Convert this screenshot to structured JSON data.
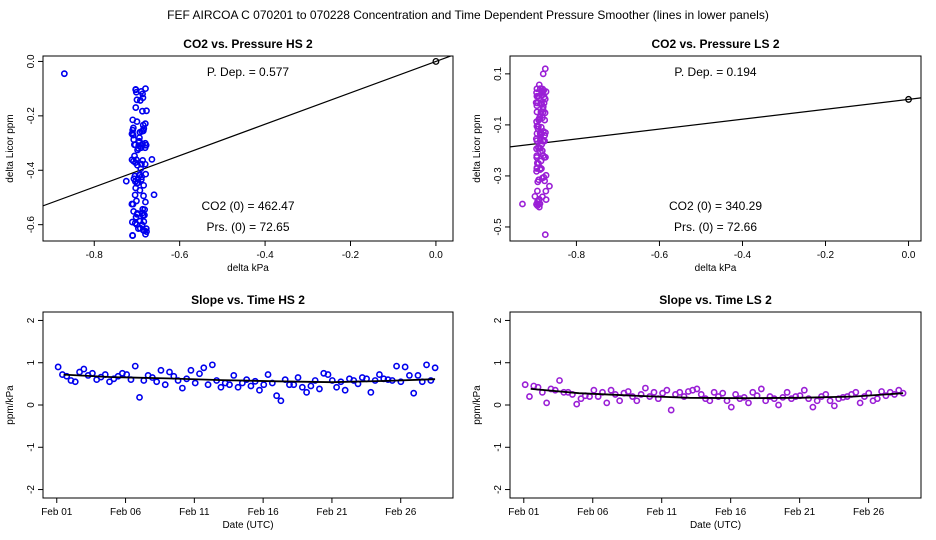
{
  "figure_title": "FEF   AIRCOA C   070201 to 070228   Concentration and Time Dependent Pressure Smoother (lines in lower panels)",
  "chart_data": [
    {
      "id": "hs-pressure",
      "type": "scatter",
      "title": "CO2 vs. Pressure HS 2",
      "xlabel": "delta kPa",
      "ylabel": "delta Licor ppm",
      "xlim": [
        -0.92,
        0.04
      ],
      "ylim": [
        -0.66,
        0.02
      ],
      "xticks": [
        -0.8,
        -0.6,
        -0.4,
        -0.2,
        0.0
      ],
      "xtick_labels": [
        "-0.8",
        "-0.6",
        "-0.4",
        "-0.2",
        "0.0"
      ],
      "yticks": [
        0.0,
        -0.2,
        -0.4,
        -0.6
      ],
      "ytick_labels": [
        "0.0",
        "-0.2",
        "-0.4",
        "-0.6"
      ],
      "color": "#0000ee",
      "annotations": {
        "p_dep": "P. Dep. =  0.577",
        "co2_0": "CO2 (0) =  462.47",
        "prs_0": "Prs. (0) =  72.65"
      },
      "fit_line": {
        "slope": 0.577,
        "intercept": 0.0
      },
      "reference_point": [
        0.0,
        0.0
      ],
      "cluster": {
        "x_center": -0.695,
        "x_spread": 0.018,
        "y_min": -0.64,
        "y_max": -0.1,
        "n": 90,
        "seed": 11
      },
      "points": [
        [
          -0.87,
          -0.045
        ],
        [
          -0.69,
          -0.11
        ],
        [
          -0.68,
          -0.1
        ],
        [
          -0.665,
          -0.36
        ],
        [
          -0.66,
          -0.49
        ],
        [
          -0.68,
          -0.635
        ],
        [
          -0.725,
          -0.44
        ],
        [
          -0.71,
          -0.64
        ]
      ]
    },
    {
      "id": "ls-pressure",
      "type": "scatter",
      "title": "CO2 vs. Pressure LS 2",
      "xlabel": "delta kPa",
      "ylabel": "delta Licor ppm",
      "xlim": [
        -0.96,
        0.03
      ],
      "ylim": [
        -0.555,
        0.17
      ],
      "xticks": [
        -0.8,
        -0.6,
        -0.4,
        -0.2,
        0.0
      ],
      "xtick_labels": [
        "-0.8",
        "-0.6",
        "-0.4",
        "-0.2",
        "0.0"
      ],
      "yticks": [
        0.1,
        -0.1,
        -0.3,
        -0.5
      ],
      "ytick_labels": [
        "0.1",
        "-0.1",
        "-0.3",
        "-0.5"
      ],
      "color": "#9a1fd6",
      "annotations": {
        "p_dep": "P. Dep. =  0.194",
        "co2_0": "CO2 (0) =  340.29",
        "prs_0": "Prs. (0) =  72.66"
      },
      "fit_line": {
        "slope": 0.194,
        "intercept": 0.0
      },
      "reference_point": [
        0.0,
        0.0
      ],
      "cluster": {
        "x_center": -0.885,
        "x_spread": 0.012,
        "y_min": -0.43,
        "y_max": 0.06,
        "n": 95,
        "seed": 23
      },
      "points": [
        [
          -0.875,
          0.12
        ],
        [
          -0.875,
          -0.53
        ],
        [
          -0.93,
          -0.41
        ],
        [
          -0.88,
          0.1
        ],
        [
          -0.865,
          -0.34
        ],
        [
          -0.9,
          -0.38
        ]
      ]
    },
    {
      "id": "hs-time",
      "type": "scatter",
      "title": "Slope vs. Time HS 2",
      "xlabel": "Date (UTC)",
      "ylabel": "ppm/kPa",
      "xlim": [
        -1.0,
        28.8
      ],
      "ylim": [
        -2.2,
        2.2
      ],
      "xticks": [
        0,
        5,
        10,
        15,
        20,
        25
      ],
      "xtick_labels": [
        "Feb 01",
        "Feb 06",
        "Feb 11",
        "Feb 16",
        "Feb 21",
        "Feb 26"
      ],
      "yticks": [
        2,
        1,
        0,
        -1,
        -2
      ],
      "ytick_labels": [
        "2",
        "1",
        "0",
        "-1",
        "-2"
      ],
      "color": "#0000ee",
      "smoother": [
        [
          0.5,
          0.72
        ],
        [
          4,
          0.66
        ],
        [
          8,
          0.63
        ],
        [
          12,
          0.59
        ],
        [
          16,
          0.56
        ],
        [
          20,
          0.54
        ],
        [
          24,
          0.57
        ],
        [
          27.5,
          0.61
        ]
      ],
      "values": [
        0.9,
        0.72,
        0.68,
        0.58,
        0.55,
        0.78,
        0.85,
        0.7,
        0.75,
        0.6,
        0.66,
        0.72,
        0.55,
        0.62,
        0.68,
        0.75,
        0.72,
        0.6,
        0.92,
        0.18,
        0.58,
        0.7,
        0.65,
        0.55,
        0.82,
        0.48,
        0.78,
        0.68,
        0.58,
        0.4,
        0.62,
        0.82,
        0.52,
        0.74,
        0.88,
        0.48,
        0.95,
        0.58,
        0.42,
        0.52,
        0.48,
        0.7,
        0.42,
        0.52,
        0.6,
        0.45,
        0.56,
        0.35,
        0.48,
        0.72,
        0.52,
        0.22,
        0.1,
        0.6,
        0.48,
        0.48,
        0.65,
        0.42,
        0.3,
        0.45,
        0.58,
        0.38,
        0.75,
        0.72,
        0.58,
        0.42,
        0.55,
        0.35,
        0.62,
        0.58,
        0.5,
        0.65,
        0.62,
        0.3,
        0.58,
        0.72,
        0.62,
        0.6,
        0.58,
        0.92,
        0.55,
        0.9,
        0.7,
        0.28,
        0.7,
        0.55,
        0.95,
        0.58,
        0.88
      ]
    },
    {
      "id": "ls-time",
      "type": "scatter",
      "title": "Slope vs. Time LS 2",
      "xlabel": "Date (UTC)",
      "ylabel": "ppm/kPa",
      "xlim": [
        -1.0,
        28.8
      ],
      "ylim": [
        -2.2,
        2.2
      ],
      "xticks": [
        0,
        5,
        10,
        15,
        20,
        25
      ],
      "xtick_labels": [
        "Feb 01",
        "Feb 06",
        "Feb 11",
        "Feb 16",
        "Feb 21",
        "Feb 26"
      ],
      "yticks": [
        2,
        1,
        0,
        -1,
        -2
      ],
      "ytick_labels": [
        "2",
        "1",
        "0",
        "-1",
        "-2"
      ],
      "color": "#9a1fd6",
      "smoother": [
        [
          0.5,
          0.38
        ],
        [
          4,
          0.28
        ],
        [
          8,
          0.22
        ],
        [
          12,
          0.17
        ],
        [
          16,
          0.16
        ],
        [
          20,
          0.17
        ],
        [
          24,
          0.2
        ],
        [
          27.5,
          0.28
        ]
      ],
      "values": [
        0.48,
        0.2,
        0.45,
        0.42,
        0.3,
        0.05,
        0.38,
        0.35,
        0.58,
        0.3,
        0.3,
        0.25,
        0.02,
        0.15,
        0.22,
        0.2,
        0.35,
        0.2,
        0.3,
        0.05,
        0.35,
        0.25,
        0.1,
        0.28,
        0.32,
        0.2,
        0.1,
        0.25,
        0.4,
        0.2,
        0.3,
        0.15,
        0.28,
        0.35,
        -0.12,
        0.25,
        0.3,
        0.2,
        0.32,
        0.35,
        0.38,
        0.25,
        0.15,
        0.1,
        0.3,
        0.2,
        0.28,
        0.1,
        -0.05,
        0.25,
        0.15,
        0.18,
        0.05,
        0.3,
        0.22,
        0.38,
        0.1,
        0.2,
        0.15,
        0.0,
        0.18,
        0.3,
        0.15,
        0.2,
        0.22,
        0.35,
        0.15,
        -0.05,
        0.1,
        0.2,
        0.25,
        0.1,
        -0.02,
        0.15,
        0.18,
        0.2,
        0.25,
        0.3,
        0.05,
        0.2,
        0.28,
        0.1,
        0.15,
        0.32,
        0.22,
        0.3,
        0.25,
        0.35,
        0.28
      ]
    }
  ]
}
